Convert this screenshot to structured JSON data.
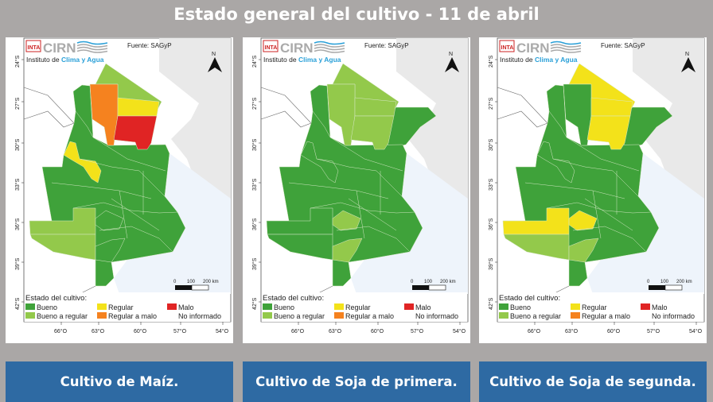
{
  "header": {
    "title": "Estado general del cultivo - 11 de abril"
  },
  "colors": {
    "bueno": "#3fa23a",
    "bueno_a_regular": "#93c94b",
    "regular": "#f3e21a",
    "regular_a_malo": "#f5821f",
    "malo": "#e02424",
    "caption_bg": "#2e6aa3"
  },
  "map_common": {
    "logo_inta": "INTA",
    "logo_cirn": "CIRN",
    "logo_sub1": "Instituto de ",
    "logo_sub2": "Clima y Agua",
    "source": "Fuente: SAGyP",
    "north": "N",
    "scale_labels": [
      "0",
      "100",
      "200 km"
    ],
    "lat_labels": [
      "24°S",
      "27°S",
      "30°S",
      "33°S",
      "36°S",
      "39°S",
      "42°S"
    ],
    "lon_labels": [
      "66°O",
      "63°O",
      "60°O",
      "57°O",
      "54°O"
    ],
    "legend_title": "Estado del cultivo:",
    "legend": [
      {
        "key": "bueno",
        "label": "Bueno"
      },
      {
        "key": "regular",
        "label": "Regular"
      },
      {
        "key": "malo",
        "label": "Malo"
      },
      {
        "key": "bueno_a_regular",
        "label": "Bueno a regular"
      },
      {
        "key": "regular_a_malo",
        "label": "Regular a malo"
      },
      {
        "key": "no_informado",
        "label": "No informado"
      }
    ]
  },
  "maps": [
    {
      "caption": "Cultivo de Maíz.",
      "regions": {
        "base": "bueno",
        "corrientes": null,
        "north_band": "bueno_a_regular",
        "chaco_w": "regular_a_malo",
        "chaco_ne": "regular",
        "chaco_se": "malo",
        "cba_n": "regular",
        "sw_n": "bueno_a_regular",
        "sw_s": "bueno_a_regular",
        "bsas_w": "bueno",
        "bsas_sw": "bueno"
      }
    },
    {
      "caption": "Cultivo de Soja de primera.",
      "regions": {
        "base": "bueno",
        "corrientes": "bueno",
        "north_band": "bueno_a_regular",
        "chaco_w": "bueno_a_regular",
        "chaco_ne": "bueno_a_regular",
        "chaco_se": "bueno_a_regular",
        "cba_n": "bueno",
        "sw_n": "bueno",
        "sw_s": "bueno",
        "bsas_w": "bueno_a_regular",
        "bsas_sw": "bueno_a_regular"
      }
    },
    {
      "caption": "Cultivo de Soja de segunda.",
      "regions": {
        "base": "bueno",
        "corrientes": "bueno",
        "north_band": "regular",
        "chaco_w": "bueno",
        "chaco_ne": "regular",
        "chaco_se": "regular",
        "cba_n": "bueno",
        "sw_n": "regular",
        "sw_s": "bueno_a_regular",
        "bsas_w": "regular",
        "bsas_sw": "bueno_a_regular"
      }
    }
  ]
}
